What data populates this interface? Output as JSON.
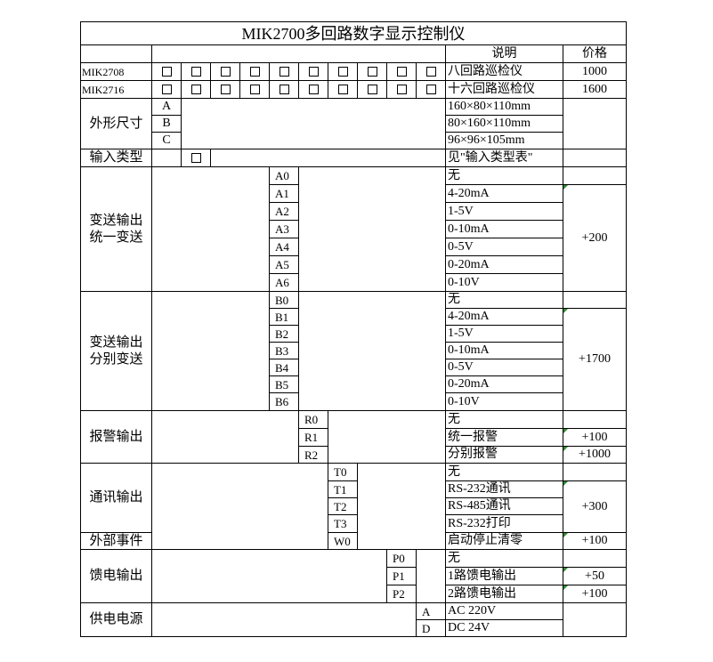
{
  "title": "MIK2700多回路数字显示控制仪",
  "header": {
    "desc": "说明",
    "price": "价格"
  },
  "models": [
    {
      "name": "MIK2708",
      "desc": "八回路巡检仪",
      "price": "1000"
    },
    {
      "name": "MIK2716",
      "desc": "十六回路巡检仪",
      "price": "1600"
    }
  ],
  "size": {
    "label": "外形尺寸",
    "options": [
      {
        "code": "A",
        "desc": "160×80×110mm"
      },
      {
        "code": "B",
        "desc": "80×160×110mm"
      },
      {
        "code": "C",
        "desc": "96×96×105mm"
      }
    ]
  },
  "input": {
    "label": "输入类型",
    "desc": "见\"输入类型表\""
  },
  "unified": {
    "label": [
      "变送输出",
      "统一变送"
    ],
    "codes": [
      "A0",
      "A1",
      "A2",
      "A3",
      "A4",
      "A5",
      "A6"
    ],
    "descs": [
      "无",
      "4-20mA",
      "1-5V",
      "0-10mA",
      "0-5V",
      "0-20mA",
      "0-10V"
    ],
    "price": "+200"
  },
  "separate": {
    "label": [
      "变送输出",
      "分别变送"
    ],
    "codes": [
      "B0",
      "B1",
      "B2",
      "B3",
      "B4",
      "B5",
      "B6"
    ],
    "descs": [
      "无",
      "4-20mA",
      "1-5V",
      "0-10mA",
      "0-5V",
      "0-20mA",
      "0-10V"
    ],
    "price": "+1700"
  },
  "alarm": {
    "label": "报警输出",
    "codes": [
      "R0",
      "R1",
      "R2"
    ],
    "descs": [
      "无",
      "统一报警",
      "分别报警"
    ],
    "prices": [
      "",
      "+100",
      "+1000"
    ]
  },
  "comm": {
    "label": "通讯输出",
    "codes": [
      "T0",
      "T1",
      "T2",
      "T3"
    ],
    "descs": [
      "无",
      "RS-232通讯",
      "RS-485通讯",
      "RS-232打印"
    ],
    "price": "+300"
  },
  "event": {
    "label": "外部事件",
    "code": "W0",
    "desc": "启动停止清零",
    "price": "+100"
  },
  "feed": {
    "label": "馈电输出",
    "codes": [
      "P0",
      "P1",
      "P2"
    ],
    "descs": [
      "无",
      "1路馈电输出",
      "2路馈电输出"
    ],
    "prices": [
      "",
      "+50",
      "+100"
    ]
  },
  "power": {
    "label": "供电电源",
    "codes": [
      "A",
      "D"
    ],
    "descs": [
      "AC 220V",
      "DC 24V"
    ]
  },
  "colors": {
    "comment_marker": "#2e8b2e",
    "grid": "#000000"
  }
}
